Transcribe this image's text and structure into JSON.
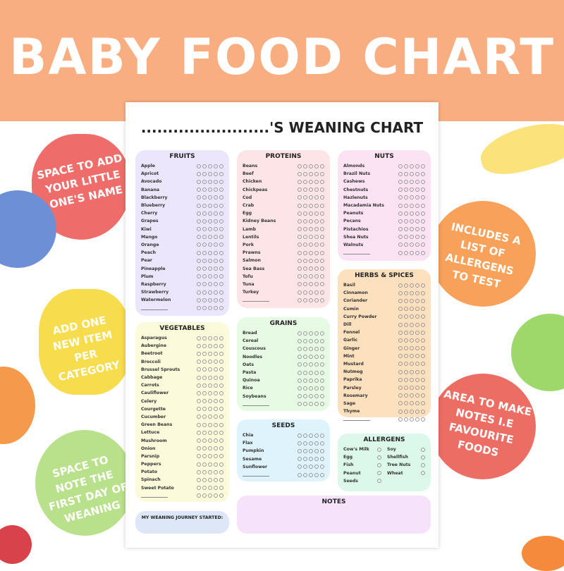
{
  "banner": {
    "title": "BABY FOOD CHART"
  },
  "callouts": [
    "SPACE TO ADD YOUR LITTLE ONE'S NAME",
    "INCLUDES A LIST OF ALLERGENS TO TEST",
    "ADD ONE NEW ITEM PER CATEGORY",
    "AREA TO MAKE NOTES I.E FAVOURITE FOODS",
    "SPACE TO NOTE THE FIRST DAY OF WEANING"
  ],
  "sheet": {
    "title": "........................'S WEANING CHART"
  },
  "sections": {
    "fruits": {
      "title": "FRUITS",
      "color": "#ebe6fb",
      "items": [
        "Apple",
        "Apricot",
        "Avocado",
        "Banana",
        "Blackberry",
        "Blueberry",
        "Cherry",
        "Grapes",
        "Kiwi",
        "Mango",
        "Orange",
        "Peach",
        "Pear",
        "Pineapple",
        "Plum",
        "Raspberry",
        "Strawberry",
        "Watermelon"
      ]
    },
    "vegetables": {
      "title": "VEGETABLES",
      "color": "#fbfbdc",
      "items": [
        "Asparagus",
        "Aubergine",
        "Beetroot",
        "Broccoli",
        "Brussel Sprouts",
        "Cabbage",
        "Carrots",
        "Cauliflower",
        "Celery",
        "Courgette",
        "Cucumber",
        "Green Beans",
        "Lettuce",
        "Mushroom",
        "Onion",
        "Parsnip",
        "Peppers",
        "Potato",
        "Spinach",
        "Sweet Potato"
      ]
    },
    "proteins": {
      "title": "PROTEINS",
      "color": "#fde5e7",
      "items": [
        "Beans",
        "Beef",
        "Chicken",
        "Chickpeas",
        "Cod",
        "Crab",
        "Egg",
        "Kidney Beans",
        "Lamb",
        "Lentils",
        "Pork",
        "Prawns",
        "Salmon",
        "Sea Bass",
        "Tofu",
        "Tuna",
        "Turkey"
      ]
    },
    "grains": {
      "title": "GRAINS",
      "color": "#e6fae4",
      "items": [
        "Bread",
        "Cereal",
        "Couscous",
        "Noodles",
        "Oats",
        "Pasta",
        "Quinoa",
        "Rice",
        "Soybeans"
      ]
    },
    "seeds": {
      "title": "SEEDS",
      "color": "#dff3fd",
      "items": [
        "Chia",
        "Flax",
        "Pumpkin",
        "Sesame",
        "Sunflower"
      ]
    },
    "nuts": {
      "title": "NUTS",
      "color": "#fce3f3",
      "items": [
        "Almonds",
        "Brazil Nuts",
        "Cashews",
        "Chestnuts",
        "Hazlenuts",
        "Macadamia Nuts",
        "Peanuts",
        "Pecans",
        "Pistachios",
        "Shea Nuts",
        "Walnuts"
      ]
    },
    "herbs": {
      "title": "HERBS & SPICES",
      "color": "#fde0bd",
      "items": [
        "Basil",
        "Cinnamon",
        "Coriander",
        "Cumin",
        "Curry Powder",
        "Dill",
        "Fennel",
        "Garlic",
        "Ginger",
        "Mint",
        "Mustard",
        "Nutmeg",
        "Paprika",
        "Parsley",
        "Rosemary",
        "Sage",
        "Thyme"
      ]
    }
  },
  "allergens": {
    "title": "ALLERGENS",
    "color": "#dcf8ea",
    "items": [
      "Cow's Milk",
      "Soy",
      "Egg",
      "Shellfish",
      "Fish",
      "Tree Nuts",
      "Peanut",
      "Wheat",
      "Seeds"
    ]
  },
  "notes": {
    "title": "NOTES",
    "color": "#f6e3fb"
  },
  "journey": {
    "label": "MY WEANING JOURNEY STARTED:",
    "color": "#dde7f8"
  }
}
